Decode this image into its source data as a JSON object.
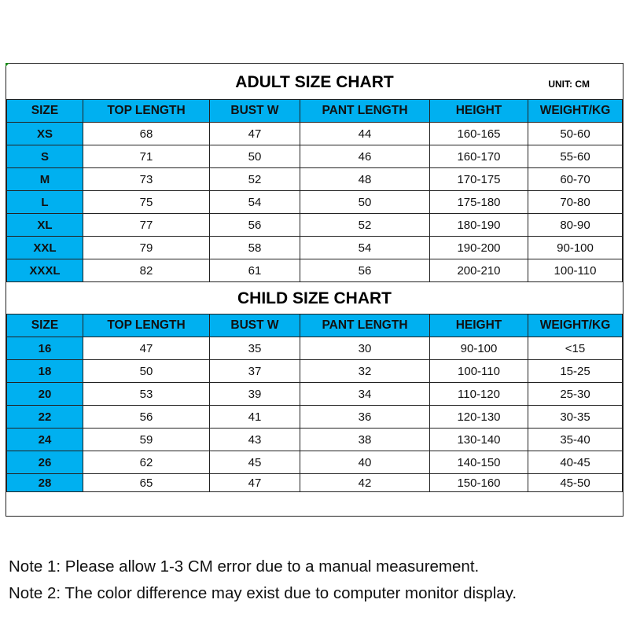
{
  "adult": {
    "title": "ADULT SIZE CHART",
    "unit": "UNIT: CM",
    "headers": [
      "SIZE",
      "TOP LENGTH",
      "BUST W",
      "PANT LENGTH",
      "HEIGHT",
      "WEIGHT/KG"
    ],
    "rows": [
      [
        "XS",
        "68",
        "47",
        "44",
        "160-165",
        "50-60"
      ],
      [
        "S",
        "71",
        "50",
        "46",
        "160-170",
        "55-60"
      ],
      [
        "M",
        "73",
        "52",
        "48",
        "170-175",
        "60-70"
      ],
      [
        "L",
        "75",
        "54",
        "50",
        "175-180",
        "70-80"
      ],
      [
        "XL",
        "77",
        "56",
        "52",
        "180-190",
        "80-90"
      ],
      [
        "XXL",
        "79",
        "58",
        "54",
        "190-200",
        "90-100"
      ],
      [
        "XXXL",
        "82",
        "61",
        "56",
        "200-210",
        "100-110"
      ]
    ]
  },
  "child": {
    "title": "CHILD SIZE CHART",
    "headers": [
      "SIZE",
      "TOP LENGTH",
      "BUST W",
      "PANT LENGTH",
      "HEIGHT",
      "WEIGHT/KG"
    ],
    "rows": [
      [
        "16",
        "47",
        "35",
        "30",
        "90-100",
        "<15"
      ],
      [
        "18",
        "50",
        "37",
        "32",
        "100-110",
        "15-25"
      ],
      [
        "20",
        "53",
        "39",
        "34",
        "110-120",
        "25-30"
      ],
      [
        "22",
        "56",
        "41",
        "36",
        "120-130",
        "30-35"
      ],
      [
        "24",
        "59",
        "43",
        "38",
        "130-140",
        "35-40"
      ],
      [
        "26",
        "62",
        "45",
        "40",
        "140-150",
        "40-45"
      ],
      [
        "28",
        "65",
        "47",
        "42",
        "150-160",
        "45-50"
      ]
    ]
  },
  "notes": [
    "Note 1: Please allow 1-3 CM error due to a manual measurement.",
    "Note 2: The color difference may exist due to computer monitor display."
  ],
  "colors": {
    "header": "#00b0f0"
  }
}
